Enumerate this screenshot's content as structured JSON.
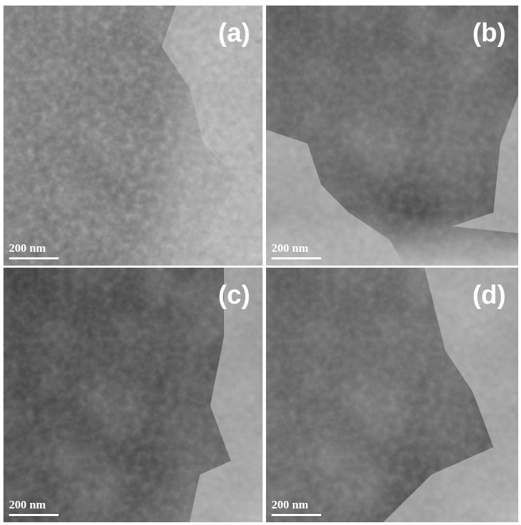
{
  "panels": [
    {
      "label": "(a)",
      "scale_bar": "200 nm"
    },
    {
      "label": "(b)",
      "scale_bar": "200 nm"
    },
    {
      "label": "(c)",
      "scale_bar": "200 nm"
    },
    {
      "label": "(d)",
      "scale_bar": "200 nm"
    }
  ]
}
